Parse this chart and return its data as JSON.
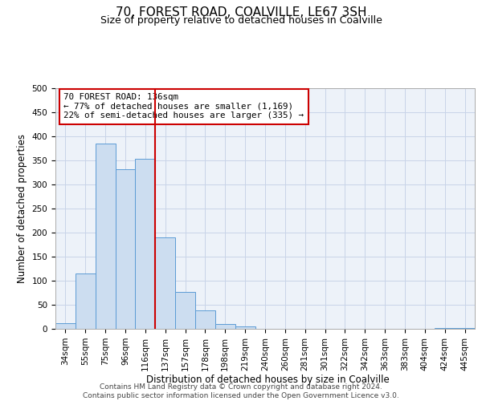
{
  "title": "70, FOREST ROAD, COALVILLE, LE67 3SH",
  "subtitle": "Size of property relative to detached houses in Coalville",
  "xlabel": "Distribution of detached houses by size in Coalville",
  "ylabel": "Number of detached properties",
  "categories": [
    "34sqm",
    "55sqm",
    "75sqm",
    "96sqm",
    "116sqm",
    "137sqm",
    "157sqm",
    "178sqm",
    "198sqm",
    "219sqm",
    "240sqm",
    "260sqm",
    "281sqm",
    "301sqm",
    "322sqm",
    "342sqm",
    "363sqm",
    "383sqm",
    "404sqm",
    "424sqm",
    "445sqm"
  ],
  "values": [
    12,
    115,
    385,
    332,
    353,
    190,
    76,
    38,
    10,
    5,
    0,
    0,
    0,
    0,
    0,
    0,
    0,
    0,
    0,
    2,
    2
  ],
  "bar_color": "#ccddf0",
  "bar_edge_color": "#5b9bd5",
  "property_line_color": "#cc0000",
  "property_line_index": 5,
  "annotation_title": "70 FOREST ROAD: 136sqm",
  "annotation_line1": "← 77% of detached houses are smaller (1,169)",
  "annotation_line2": "22% of semi-detached houses are larger (335) →",
  "annotation_box_color": "#cc0000",
  "ylim": [
    0,
    500
  ],
  "yticks": [
    0,
    50,
    100,
    150,
    200,
    250,
    300,
    350,
    400,
    450,
    500
  ],
  "footer_line1": "Contains HM Land Registry data © Crown copyright and database right 2024.",
  "footer_line2": "Contains public sector information licensed under the Open Government Licence v3.0.",
  "bg_color": "#ffffff",
  "plot_bg_color": "#edf2f9",
  "title_fontsize": 11,
  "subtitle_fontsize": 9,
  "axis_label_fontsize": 8.5,
  "tick_fontsize": 7.5,
  "annotation_fontsize": 7.8,
  "footer_fontsize": 6.5
}
